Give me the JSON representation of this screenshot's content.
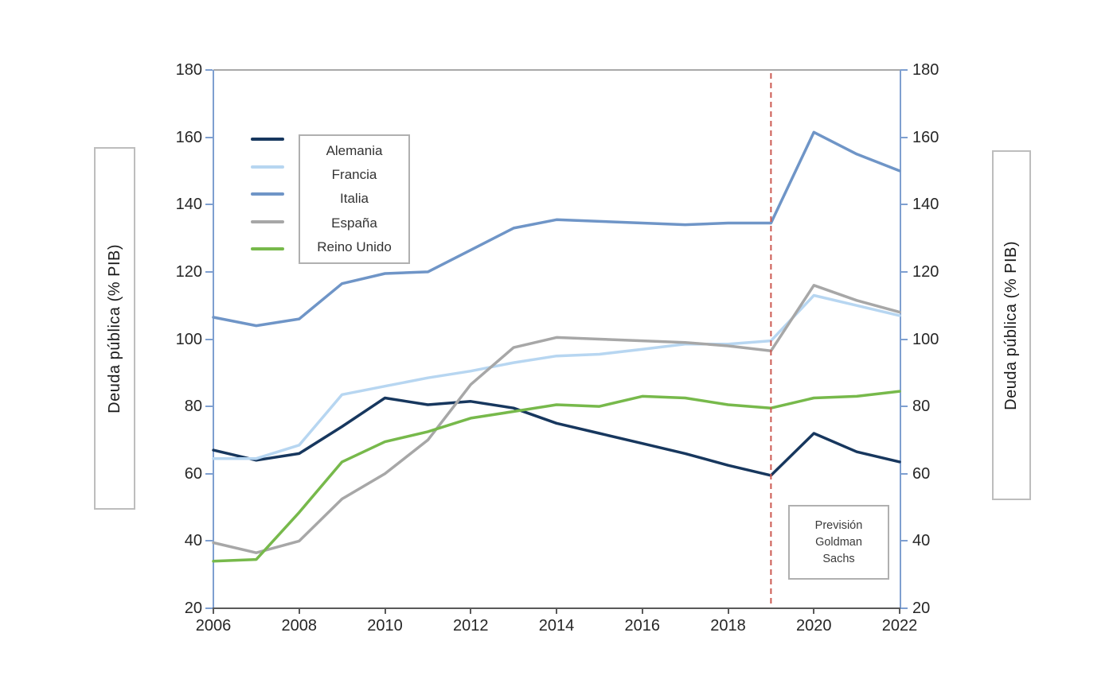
{
  "figure": {
    "left_axis_title": "Deuda pública (% PIB)",
    "right_axis_title": "Deuda pública (% PIB)",
    "forecast_annotation": {
      "line1": "Previsión",
      "line2": "Goldman",
      "line3": "Sachs"
    }
  },
  "chart_data": {
    "type": "line",
    "title": "",
    "xlabel": "",
    "ylabel": "Deuda pública (% PIB)",
    "x": [
      2006,
      2007,
      2008,
      2009,
      2010,
      2011,
      2012,
      2013,
      2014,
      2015,
      2016,
      2017,
      2018,
      2019,
      2020,
      2021,
      2022
    ],
    "xlim": [
      2006,
      2022
    ],
    "ylim": [
      20,
      180
    ],
    "x_ticks": [
      2006,
      2008,
      2010,
      2012,
      2014,
      2016,
      2018,
      2020,
      2022
    ],
    "y_ticks": [
      20,
      40,
      60,
      80,
      100,
      120,
      140,
      160,
      180
    ],
    "grid": false,
    "legend_position": "top-left",
    "series": [
      {
        "name": "Alemania",
        "color": "#17375e",
        "values": [
          67,
          64,
          66,
          74,
          82.5,
          80.5,
          81.5,
          79.5,
          75,
          72,
          69,
          66,
          62.5,
          59.5,
          72,
          66.5,
          63.5
        ]
      },
      {
        "name": "Francia",
        "color": "#b7d6f1",
        "values": [
          64.5,
          64.5,
          68.5,
          83.5,
          86,
          88.5,
          90.5,
          93,
          95,
          95.5,
          97,
          98.5,
          98.5,
          99.5,
          113,
          110,
          107
        ]
      },
      {
        "name": "Italia",
        "color": "#6f95c7",
        "values": [
          106.5,
          104,
          106,
          116.5,
          119.5,
          120,
          126.5,
          133,
          135.5,
          135,
          134.5,
          134,
          134.5,
          134.5,
          161.5,
          155,
          150
        ]
      },
      {
        "name": "España",
        "color": "#a7a7a7",
        "values": [
          39.5,
          36.5,
          40,
          52.5,
          60,
          70,
          86.5,
          97.5,
          100.5,
          100,
          99.5,
          99,
          98,
          96.5,
          116,
          111.5,
          108
        ]
      },
      {
        "name": "Reino Unido",
        "color": "#77b94b",
        "values": [
          34,
          34.5,
          48.5,
          63.5,
          69.5,
          72.5,
          76.5,
          78.5,
          80.5,
          80,
          83,
          82.5,
          80.5,
          79.5,
          82.5,
          83,
          84.5
        ]
      }
    ],
    "forecast_divider": {
      "x": 2019,
      "color": "#cc5a52",
      "style": "dashed"
    },
    "axis_colors": {
      "left_right": "#7e9fd0",
      "bottom": "#595959",
      "top": "#a9a9a9"
    }
  }
}
